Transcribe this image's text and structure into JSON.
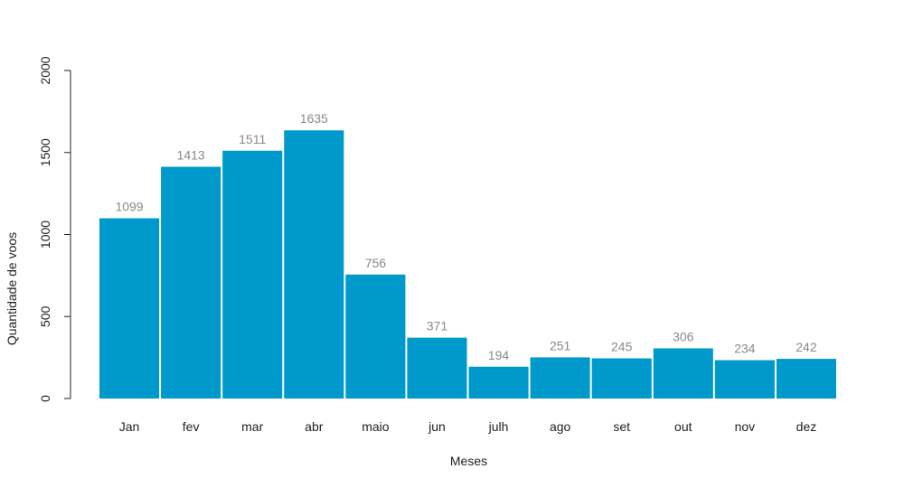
{
  "chart_data": {
    "type": "bar",
    "title": "",
    "xlabel": "Meses",
    "ylabel": "Quantidade de voos",
    "categories": [
      "Jan",
      "fev",
      "mar",
      "abr",
      "maio",
      "jun",
      "julh",
      "ago",
      "set",
      "out",
      "nov",
      "dez"
    ],
    "values": [
      1099,
      1413,
      1511,
      1635,
      756,
      371,
      194,
      251,
      245,
      306,
      234,
      242
    ],
    "data_labels": [
      "1099",
      "1413",
      "1511",
      "1635",
      "756",
      "371",
      "194",
      "251",
      "245",
      "306",
      "234",
      "242"
    ],
    "ylim": [
      0,
      2000
    ],
    "yticks": [
      0,
      500,
      1000,
      1500,
      2000
    ],
    "ytick_labels": [
      "0",
      "500",
      "1000",
      "1500",
      "2000"
    ],
    "grid": false,
    "legend": "none",
    "bar_color": "#0099cc",
    "data_label_color": "#8a8a8a"
  }
}
